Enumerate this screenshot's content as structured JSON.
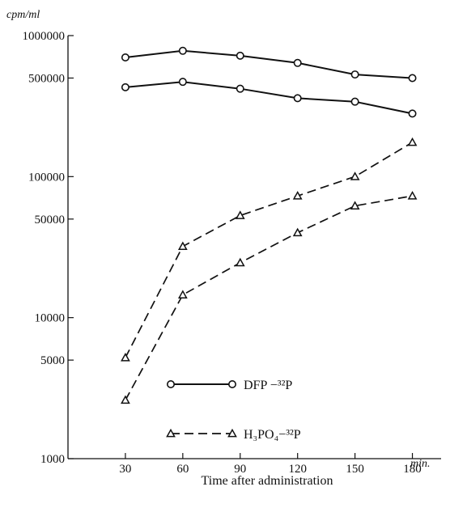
{
  "chart_data": {
    "type": "line",
    "ylabel": "cpm/ml",
    "xlabel": "Time after administration",
    "x_unit": "min.",
    "yscale": "log",
    "ylim": [
      1000,
      1000000
    ],
    "xlim": [
      0,
      195
    ],
    "x": [
      30,
      60,
      90,
      120,
      150,
      180
    ],
    "xtick_labels": [
      "30",
      "60",
      "90",
      "120",
      "150",
      "180"
    ],
    "ytick_labels": [
      {
        "value": 1000000,
        "label": "1000000"
      },
      {
        "value": 500000,
        "label": "500000"
      },
      {
        "value": 100000,
        "label": "100000"
      },
      {
        "value": 50000,
        "label": "50000"
      },
      {
        "value": 10000,
        "label": "10000"
      },
      {
        "value": 5000,
        "label": "5000"
      },
      {
        "value": 1000,
        "label": "1000"
      }
    ],
    "series": [
      {
        "legend": "DFP",
        "style": "solid",
        "marker": "circle",
        "values": [
          700000,
          780000,
          720000,
          640000,
          530000,
          500000
        ]
      },
      {
        "legend": "DFP",
        "style": "solid",
        "marker": "circle",
        "values": [
          430000,
          470000,
          420000,
          360000,
          340000,
          280000
        ]
      },
      {
        "legend": "H3PO4",
        "style": "dashed",
        "marker": "triangle",
        "values": [
          5200,
          32000,
          53000,
          73000,
          100000,
          175000
        ]
      },
      {
        "legend": "H3PO4",
        "style": "dashed",
        "marker": "triangle",
        "values": [
          2600,
          14500,
          24500,
          40000,
          62000,
          73000
        ]
      }
    ],
    "legend": [
      {
        "key": "DFP",
        "style": "solid",
        "marker": "circle",
        "label": "DFP −³²P"
      },
      {
        "key": "H3PO4",
        "style": "dashed",
        "marker": "triangle",
        "label": "H₃PO₄−³²P"
      }
    ],
    "legend_position": "lower-right",
    "grid": false
  }
}
